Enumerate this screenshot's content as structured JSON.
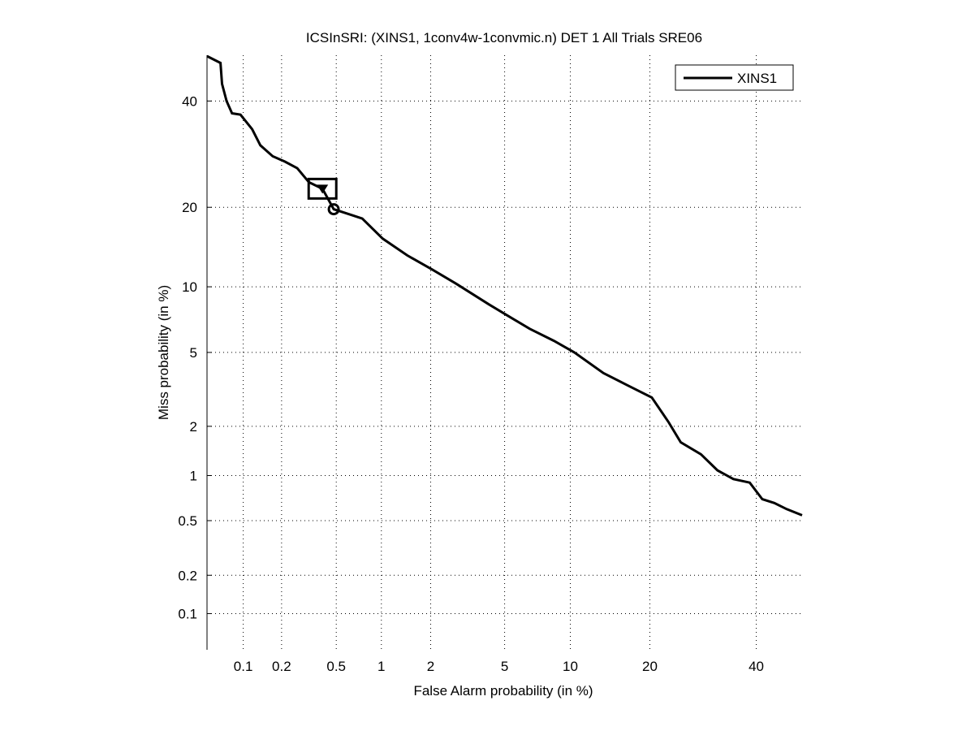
{
  "chart_data": {
    "type": "line",
    "title": "ICSInSRI: (XINS1, 1conv4w-1convmic.n) DET 1 All Trials SRE06",
    "xlabel": "False Alarm probability (in %)",
    "ylabel": "Miss probability (in %)",
    "xscale": "probit",
    "yscale": "probit",
    "xlim": [
      0.05,
      50
    ],
    "ylim": [
      0.05,
      50
    ],
    "grid": true,
    "legend_position": "top-right",
    "x_ticks": [
      0.1,
      0.2,
      0.5,
      1,
      2,
      5,
      10,
      20,
      40
    ],
    "x_tick_labels": [
      "0.1",
      "0.2",
      "0.5",
      "1",
      "2",
      "5",
      "10",
      "20",
      "40"
    ],
    "y_ticks": [
      0.1,
      0.2,
      0.5,
      1,
      2,
      5,
      10,
      20,
      40
    ],
    "y_tick_labels": [
      "0.1",
      "0.2",
      "0.5",
      "1",
      "2",
      "5",
      "10",
      "20",
      "40"
    ],
    "series": [
      {
        "name": "XINS1",
        "color": "#000000",
        "x": [
          0.05,
          0.065,
          0.067,
          0.073,
          0.081,
          0.095,
          0.118,
          0.137,
          0.171,
          0.212,
          0.262,
          0.32,
          0.4,
          0.48,
          0.62,
          0.75,
          1.02,
          1.45,
          2.03,
          2.79,
          4.16,
          5.27,
          6.6,
          8.5,
          10.4,
          13.6,
          16.7,
          20.3,
          23.0,
          25.1,
          28.8,
          32.0,
          35.2,
          38.6,
          41.3,
          43.9,
          46.6,
          50
        ],
        "y": [
          49.8,
          48.3,
          43.7,
          40,
          37.4,
          37.1,
          34.1,
          30.9,
          28.8,
          27.8,
          26.6,
          24.1,
          23.0,
          19.7,
          18.9,
          18.3,
          15.5,
          13.4,
          11.8,
          10.3,
          8.4,
          7.4,
          6.5,
          5.7,
          5.0,
          3.93,
          3.39,
          2.91,
          2.12,
          1.61,
          1.36,
          1.08,
          0.95,
          0.9,
          0.7,
          0.66,
          0.6,
          0.545
        ]
      }
    ],
    "markers": [
      {
        "shape": "triangle-down-in-box",
        "x": 0.4,
        "y": 23.0
      },
      {
        "shape": "circle",
        "x": 0.48,
        "y": 19.7
      }
    ]
  }
}
